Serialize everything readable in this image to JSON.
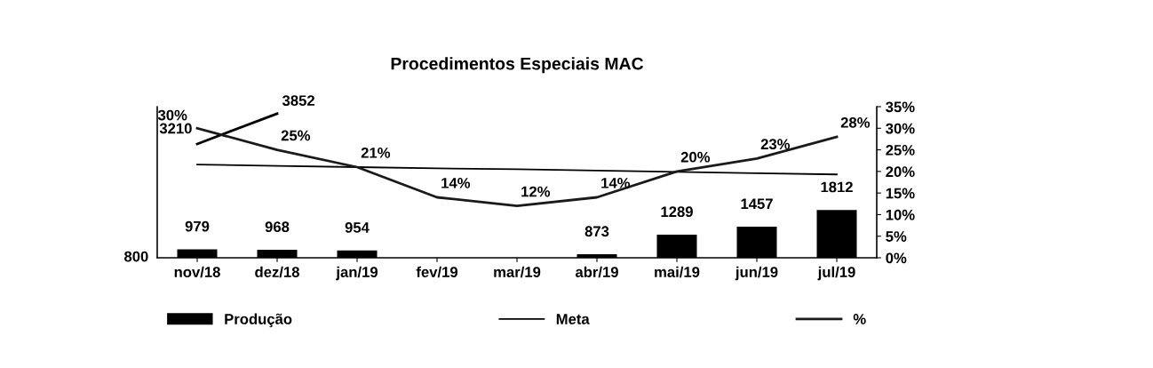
{
  "chart_data": {
    "type": "bar",
    "title": "Procedimentos Especiais MAC",
    "categories": [
      "nov/18",
      "dez/18",
      "jan/19",
      "fev/19",
      "mar/19",
      "abr/19",
      "mai/19",
      "jun/19",
      "jul/19"
    ],
    "series": [
      {
        "name": "Produção",
        "color": "#000000",
        "values": [
          979,
          968,
          954,
          null,
          null,
          873,
          1289,
          1457,
          1812
        ],
        "value_labels": [
          "979",
          "968",
          "954",
          null,
          null,
          "873",
          "1289",
          "1457",
          "1812"
        ]
      },
      {
        "type": "line",
        "color": "#000000",
        "values": [
          3210,
          3852,
          null,
          null,
          null,
          null,
          null,
          null,
          null
        ],
        "value_labels": [
          "3210",
          "3852",
          null,
          null,
          null,
          null,
          null,
          null,
          null
        ]
      },
      {
        "name": "Meta",
        "type": "line",
        "axis": "y2",
        "color": "#000000",
        "values": [
          21.6,
          21.3,
          21.0,
          20.7,
          20.5,
          20.2,
          19.9,
          19.6,
          19.3
        ]
      },
      {
        "name": "%",
        "type": "line",
        "axis": "y2",
        "color": "#1a1a1a",
        "values": [
          30,
          25,
          21,
          14,
          12,
          14,
          20,
          23,
          28
        ],
        "value_labels": [
          "30%",
          "25%",
          "21%",
          "14%",
          "12%",
          "14%",
          "20%",
          "23%",
          "28%"
        ]
      }
    ],
    "ylim": [
      800,
      4000
    ],
    "annotations": [
      "800"
    ],
    "y2lim": [
      0,
      35
    ],
    "y2ticks": [
      {
        "value": 0,
        "label": "0%"
      },
      {
        "value": 5,
        "label": "5%"
      },
      {
        "value": 10,
        "label": "10%"
      },
      {
        "value": 15,
        "label": "15%"
      },
      {
        "value": 20,
        "label": "20%"
      },
      {
        "value": 25,
        "label": "25%"
      },
      {
        "value": 30,
        "label": "30%"
      },
      {
        "value": 35,
        "label": "35%"
      }
    ],
    "legend": "bottom",
    "grid": false,
    "marker": "none",
    "line_style": "solid"
  }
}
